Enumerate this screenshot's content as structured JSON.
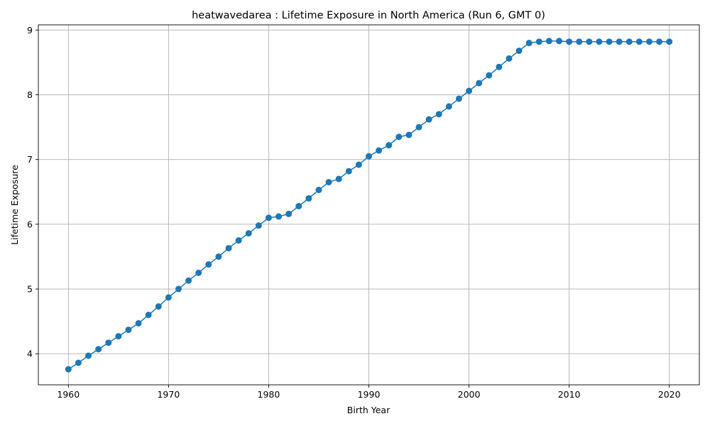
{
  "chart_data": {
    "type": "line",
    "title": "heatwavedarea : Lifetime Exposure in North America (Run 6, GMT 0)",
    "xlabel": "Birth Year",
    "ylabel": "Lifetime Exposure",
    "xlim": [
      1957,
      2023
    ],
    "ylim": [
      3.52,
      9.08
    ],
    "xticks": [
      1960,
      1970,
      1980,
      1990,
      2000,
      2010,
      2020
    ],
    "yticks": [
      4,
      5,
      6,
      7,
      8,
      9
    ],
    "grid": true,
    "marker": "circle",
    "color": "#1f77b4",
    "x": [
      1960,
      1961,
      1962,
      1963,
      1964,
      1965,
      1966,
      1967,
      1968,
      1969,
      1970,
      1971,
      1972,
      1973,
      1974,
      1975,
      1976,
      1977,
      1978,
      1979,
      1980,
      1981,
      1982,
      1983,
      1984,
      1985,
      1986,
      1987,
      1988,
      1989,
      1990,
      1991,
      1992,
      1993,
      1994,
      1995,
      1996,
      1997,
      1998,
      1999,
      2000,
      2001,
      2002,
      2003,
      2004,
      2005,
      2006,
      2007,
      2008,
      2009,
      2010,
      2011,
      2012,
      2013,
      2014,
      2015,
      2016,
      2017,
      2018,
      2019,
      2020
    ],
    "y": [
      3.76,
      3.86,
      3.97,
      4.07,
      4.17,
      4.27,
      4.37,
      4.47,
      4.6,
      4.73,
      4.87,
      5.0,
      5.13,
      5.25,
      5.38,
      5.5,
      5.63,
      5.75,
      5.86,
      5.98,
      6.1,
      6.12,
      6.16,
      6.28,
      6.4,
      6.53,
      6.65,
      6.7,
      6.82,
      6.92,
      7.05,
      7.14,
      7.22,
      7.35,
      7.38,
      7.5,
      7.62,
      7.7,
      7.82,
      7.94,
      8.06,
      8.18,
      8.3,
      8.43,
      8.56,
      8.68,
      8.8,
      8.82,
      8.83,
      8.83,
      8.82,
      8.82,
      8.82,
      8.82,
      8.82,
      8.82,
      8.82,
      8.82,
      8.82,
      8.82,
      8.82
    ]
  }
}
